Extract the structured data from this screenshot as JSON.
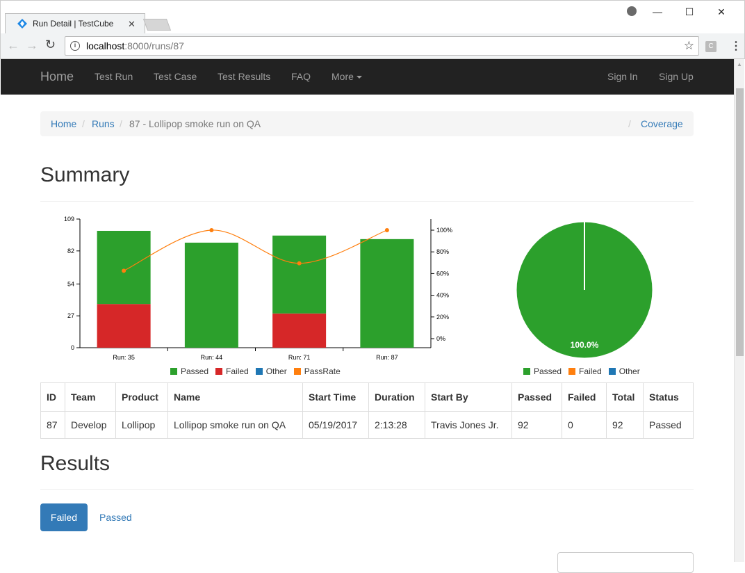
{
  "browser": {
    "tab_title": "Run Detail | TestCube",
    "url_host": "localhost",
    "url_rest": ":8000/runs/87",
    "ext_label": "C"
  },
  "navbar": {
    "brand": "Home",
    "links": [
      "Test Run",
      "Test Case",
      "Test Results",
      "FAQ",
      "More"
    ],
    "right_links": [
      "Sign In",
      "Sign Up"
    ]
  },
  "breadcrumb": {
    "home": "Home",
    "runs": "Runs",
    "current": "87 - Lollipop smoke run on QA",
    "separator": "/",
    "coverage": "Coverage"
  },
  "summary": {
    "title": "Summary"
  },
  "chart_data": [
    {
      "type": "bar",
      "categories": [
        "Run: 35",
        "Run: 44",
        "Run: 71",
        "Run: 87"
      ],
      "series": [
        {
          "name": "Passed",
          "values": [
            62,
            89,
            66,
            92
          ],
          "color": "#2ca02c"
        },
        {
          "name": "Failed",
          "values": [
            37,
            0,
            29,
            0
          ],
          "color": "#d62728"
        },
        {
          "name": "Other",
          "values": [
            0,
            0,
            0,
            0
          ],
          "color": "#1f77b4"
        },
        {
          "name": "PassRate",
          "values": [
            62.6,
            100,
            69.5,
            100
          ],
          "color": "#ff7f0e",
          "type": "line"
        }
      ],
      "yticks": [
        "0",
        "27",
        "54",
        "82",
        "109"
      ],
      "y2ticks": [
        "0%",
        "20%",
        "40%",
        "60%",
        "80%",
        "100%"
      ],
      "ylim": [
        0,
        109
      ],
      "y2lim": [
        0,
        100
      ],
      "legend": "bottom"
    },
    {
      "type": "pie",
      "categories": [
        "Passed",
        "Failed",
        "Other"
      ],
      "values": [
        100.0,
        0,
        0
      ],
      "colors": [
        "#2ca02c",
        "#ff7f0e",
        "#1f77b4"
      ],
      "label": "100.0%",
      "legend": "bottom"
    }
  ],
  "run_table": {
    "headers": [
      "ID",
      "Team",
      "Product",
      "Name",
      "Start Time",
      "Duration",
      "Start By",
      "Passed",
      "Failed",
      "Total",
      "Status"
    ],
    "row": [
      "87",
      "Develop",
      "Lollipop",
      "Lollipop smoke run on QA",
      "05/19/2017",
      "2:13:28",
      "Travis Jones Jr.",
      "92",
      "0",
      "92",
      "Passed"
    ]
  },
  "results": {
    "title": "Results",
    "failed_button": "Failed",
    "passed_link": "Passed"
  }
}
